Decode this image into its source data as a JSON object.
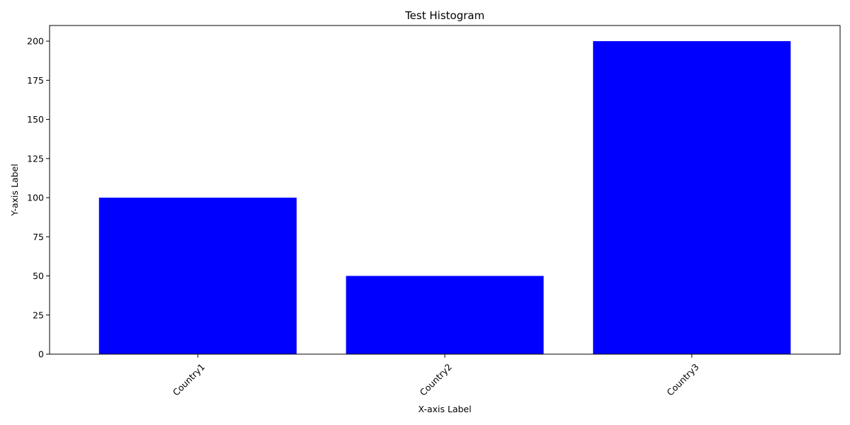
{
  "chart_data": {
    "type": "bar",
    "title": "Test Histogram",
    "xlabel": "X-axis Label",
    "ylabel": "Y-axis Label",
    "categories": [
      "Country1",
      "Country2",
      "Country3"
    ],
    "values": [
      100,
      50,
      200
    ],
    "ylim": [
      0,
      210
    ],
    "yticks": [
      0,
      25,
      50,
      75,
      100,
      125,
      150,
      175,
      200
    ],
    "bar_color": "#0000ff",
    "grid": false,
    "xtick_rotation": 45
  }
}
